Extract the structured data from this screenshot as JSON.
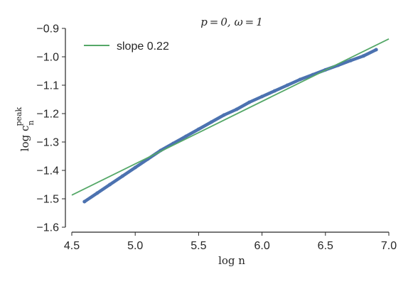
{
  "chart_data": {
    "type": "line",
    "title": "p = 0, ω = 1",
    "xlabel": "log n",
    "ylabel": "log c",
    "ylabel_sub": "n",
    "ylabel_sup": "peak",
    "xlim": [
      4.5,
      7.0
    ],
    "ylim": [
      -1.6,
      -0.9
    ],
    "xticks": [
      4.5,
      5.0,
      5.5,
      6.0,
      6.5,
      7.0
    ],
    "xtick_labels": [
      "4.5",
      "5.0",
      "5.5",
      "6.0",
      "6.5",
      "7.0"
    ],
    "yticks": [
      -0.9,
      -1.0,
      -1.1,
      -1.2,
      -1.3,
      -1.4,
      -1.5,
      -1.6
    ],
    "ytick_labels": [
      "−0.9",
      "−1.0",
      "−1.1",
      "−1.2",
      "−1.3",
      "−1.4",
      "−1.5",
      "−1.6"
    ],
    "grid": false,
    "legend_position": "top-left",
    "series": [
      {
        "kind": "data",
        "color": "#4c72b0",
        "x": [
          4.6,
          4.7,
          4.8,
          4.9,
          5.0,
          5.1,
          5.2,
          5.3,
          5.4,
          5.5,
          5.6,
          5.7,
          5.8,
          5.9,
          6.0,
          6.1,
          6.2,
          6.3,
          6.4,
          6.5,
          6.6,
          6.7,
          6.8,
          6.9
        ],
        "y": [
          -1.51,
          -1.48,
          -1.45,
          -1.42,
          -1.39,
          -1.36,
          -1.33,
          -1.305,
          -1.28,
          -1.255,
          -1.23,
          -1.205,
          -1.185,
          -1.16,
          -1.14,
          -1.12,
          -1.1,
          -1.08,
          -1.063,
          -1.046,
          -1.03,
          -1.013,
          -0.997,
          -0.975
        ]
      },
      {
        "kind": "fit",
        "name": "slope 0.22",
        "color": "#55a868",
        "x": [
          4.5,
          7.0
        ],
        "y": [
          -1.487,
          -0.937
        ]
      }
    ]
  }
}
